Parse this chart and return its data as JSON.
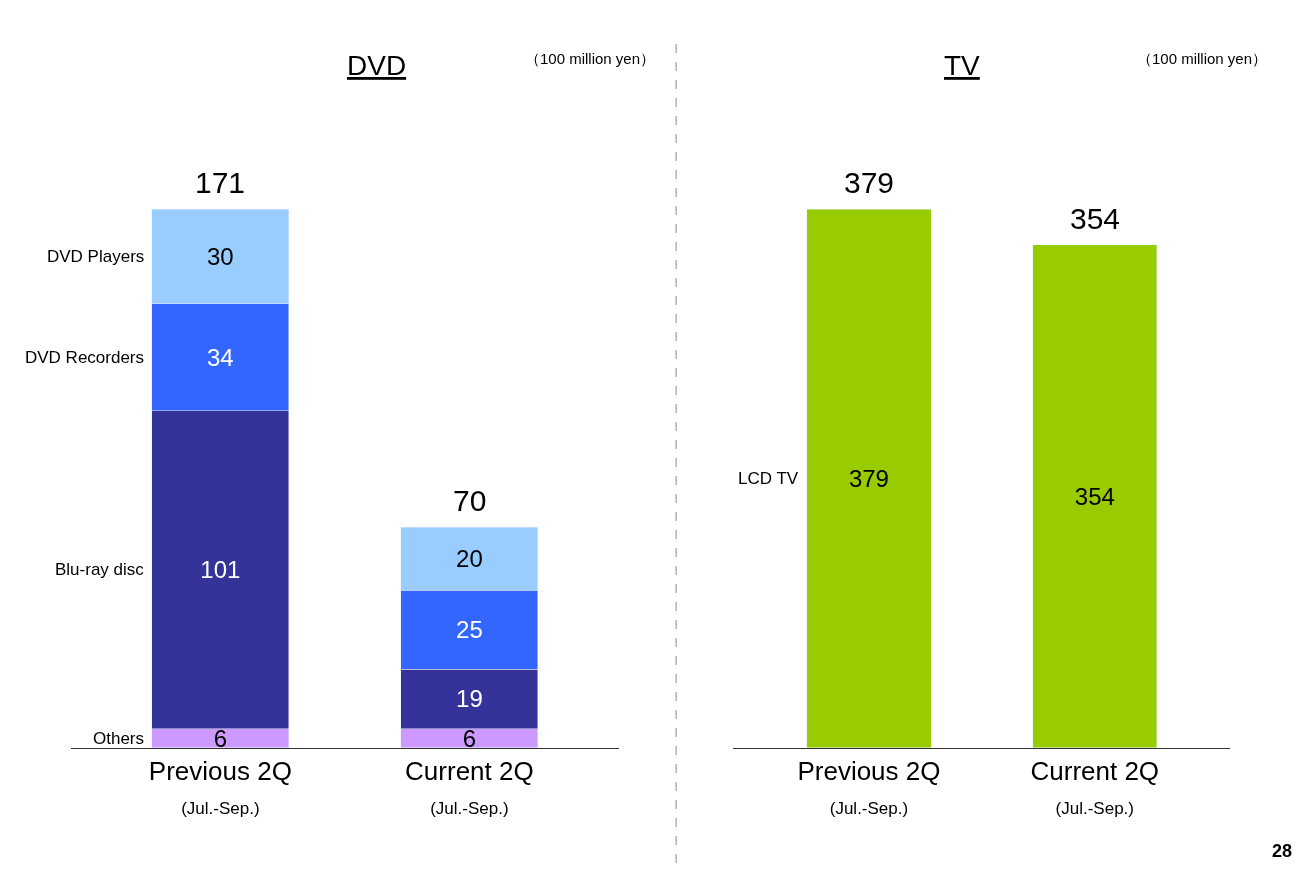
{
  "chart_data": [
    {
      "type": "bar",
      "title": "DVD",
      "stacked": true,
      "data_labels": true,
      "legend": false,
      "categories": [
        "Previous 2Q\n(Jul.-Sep.)",
        "Current 2Q\n(Jul.-Sep.)"
      ],
      "series": [
        {
          "name": "Others",
          "color": "#cc99ff",
          "values": [
            6,
            6
          ]
        },
        {
          "name": "Blu-ray disc",
          "color": "#333399",
          "values": [
            101,
            19
          ]
        },
        {
          "name": "DVD Recorders",
          "color": "#3366ff",
          "values": [
            34,
            25
          ]
        },
        {
          "name": "DVD Players",
          "color": "#99ccff",
          "values": [
            30,
            20
          ]
        }
      ],
      "totals": [
        "171",
        "70"
      ],
      "annotations": [
        "（100 million yen）"
      ]
    },
    {
      "type": "bar",
      "title": "TV",
      "stacked": true,
      "data_labels": true,
      "legend": false,
      "categories": [
        "Previous 2Q\n(Jul.-Sep.)",
        "Current 2Q\n(Jul.-Sep.)"
      ],
      "series": [
        {
          "name": "LCD TV",
          "color": "#99cc00",
          "values": [
            379,
            354
          ]
        }
      ],
      "totals": [
        "379",
        "354"
      ],
      "annotations": [
        "（100 million yen）",
        "28"
      ]
    }
  ]
}
